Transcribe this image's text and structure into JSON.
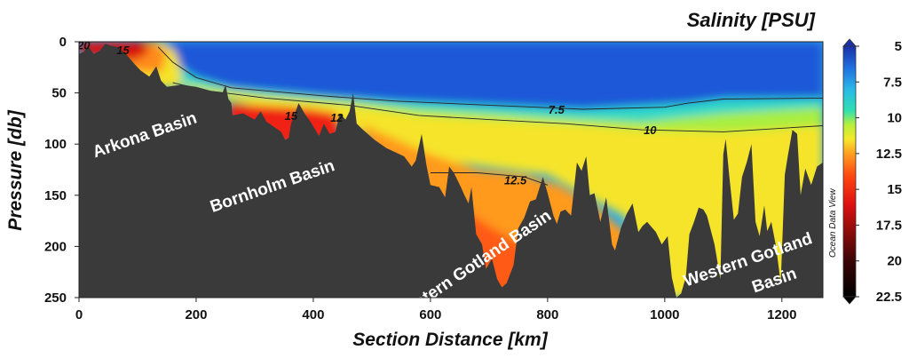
{
  "chart_data": {
    "type": "heatmap",
    "title": "Salinity [PSU]",
    "xlabel": "Section Distance [km]",
    "ylabel": "Pressure [db]",
    "xlim": [
      0,
      1270
    ],
    "ylim": [
      0,
      250
    ],
    "y_inverted": true,
    "x_ticks": [
      0,
      200,
      400,
      600,
      800,
      1000,
      1200
    ],
    "y_ticks": [
      0,
      50,
      100,
      150,
      200,
      250
    ],
    "colorbar": {
      "label_side": "right",
      "ticks": [
        "5",
        "7.5",
        "10",
        "12.5",
        "15",
        "17.5",
        "20",
        "22.5"
      ],
      "stops": [
        {
          "value": 5,
          "color": "#1a2fa8"
        },
        {
          "value": 6.5,
          "color": "#1f6fe0"
        },
        {
          "value": 8,
          "color": "#29b8e8"
        },
        {
          "value": 9.5,
          "color": "#2fe0b0"
        },
        {
          "value": 10.5,
          "color": "#b8f03a"
        },
        {
          "value": 11.5,
          "color": "#f5e82a"
        },
        {
          "value": 12.5,
          "color": "#ffa020"
        },
        {
          "value": 14,
          "color": "#ff4a10"
        },
        {
          "value": 16,
          "color": "#e01010"
        },
        {
          "value": 18,
          "color": "#8a0a0a"
        },
        {
          "value": 20,
          "color": "#3a0505"
        },
        {
          "value": 22.5,
          "color": "#000000"
        }
      ]
    },
    "watermark": "Ocean Data View",
    "contours": [
      {
        "label": "20",
        "at": [
          8,
          3
        ]
      },
      {
        "label": "15",
        "at": [
          75,
          8
        ]
      },
      {
        "label": "15",
        "at": [
          362,
          72
        ]
      },
      {
        "label": "12",
        "at": [
          440,
          74
        ]
      },
      {
        "label": "7.5",
        "at": [
          815,
          66
        ]
      },
      {
        "label": "10",
        "at": [
          975,
          86
        ]
      },
      {
        "label": "12.5",
        "at": [
          745,
          135
        ]
      }
    ],
    "contour_lines": [
      {
        "value": 7.5,
        "points": [
          [
            135,
            5
          ],
          [
            160,
            20
          ],
          [
            200,
            35
          ],
          [
            260,
            45
          ],
          [
            320,
            48
          ],
          [
            420,
            53
          ],
          [
            540,
            58
          ],
          [
            700,
            62
          ],
          [
            860,
            66
          ],
          [
            1000,
            64
          ],
          [
            1040,
            60
          ],
          [
            1100,
            56
          ],
          [
            1270,
            55
          ]
        ]
      },
      {
        "value": 10,
        "points": [
          [
            160,
            40
          ],
          [
            220,
            48
          ],
          [
            320,
            55
          ],
          [
            460,
            62
          ],
          [
            580,
            72
          ],
          [
            700,
            76
          ],
          [
            830,
            80
          ],
          [
            960,
            86
          ],
          [
            1100,
            88
          ],
          [
            1270,
            82
          ]
        ]
      },
      {
        "value": 12.5,
        "points": [
          [
            600,
            128
          ],
          [
            680,
            128
          ],
          [
            760,
            132
          ],
          [
            800,
            140
          ]
        ]
      }
    ],
    "basins": [
      {
        "label": "Arkona Basin",
        "at": [
          115,
          96
        ],
        "angle": -19
      },
      {
        "label": "Bornholm Basin",
        "at": [
          333,
          146
        ],
        "angle": -19
      },
      {
        "label": "Eastern Gotland Basin",
        "at": [
          680,
          222
        ],
        "angle": -34
      },
      {
        "label": "Western Gotland",
        "at": [
          1145,
          218
        ],
        "angle": -19
      },
      {
        "label": "Basin",
        "at": [
          1190,
          238
        ],
        "angle": -19
      }
    ],
    "bottom_depth": [
      [
        0,
        12
      ],
      [
        8,
        10
      ],
      [
        15,
        4
      ],
      [
        25,
        12
      ],
      [
        35,
        9
      ],
      [
        45,
        2
      ],
      [
        55,
        4
      ],
      [
        65,
        5
      ],
      [
        80,
        12
      ],
      [
        95,
        22
      ],
      [
        105,
        28
      ],
      [
        120,
        34
      ],
      [
        132,
        24
      ],
      [
        140,
        38
      ],
      [
        150,
        44
      ],
      [
        175,
        42
      ],
      [
        200,
        44
      ],
      [
        225,
        48
      ],
      [
        245,
        50
      ],
      [
        250,
        42
      ],
      [
        255,
        56
      ],
      [
        260,
        60
      ],
      [
        262,
        72
      ],
      [
        280,
        70
      ],
      [
        300,
        76
      ],
      [
        310,
        68
      ],
      [
        320,
        78
      ],
      [
        335,
        84
      ],
      [
        345,
        88
      ],
      [
        352,
        96
      ],
      [
        358,
        94
      ],
      [
        362,
        80
      ],
      [
        375,
        60
      ],
      [
        385,
        70
      ],
      [
        395,
        78
      ],
      [
        410,
        92
      ],
      [
        418,
        80
      ],
      [
        428,
        90
      ],
      [
        438,
        88
      ],
      [
        445,
        70
      ],
      [
        455,
        76
      ],
      [
        462,
        68
      ],
      [
        468,
        50
      ],
      [
        474,
        80
      ],
      [
        485,
        86
      ],
      [
        505,
        96
      ],
      [
        525,
        104
      ],
      [
        540,
        108
      ],
      [
        555,
        112
      ],
      [
        568,
        122
      ],
      [
        575,
        116
      ],
      [
        585,
        90
      ],
      [
        593,
        120
      ],
      [
        600,
        140
      ],
      [
        615,
        142
      ],
      [
        625,
        152
      ],
      [
        632,
        122
      ],
      [
        640,
        128
      ],
      [
        652,
        142
      ],
      [
        658,
        150
      ],
      [
        665,
        158
      ],
      [
        670,
        142
      ],
      [
        678,
        188
      ],
      [
        688,
        198
      ],
      [
        695,
        222
      ],
      [
        705,
        212
      ],
      [
        714,
        232
      ],
      [
        722,
        240
      ],
      [
        730,
        236
      ],
      [
        742,
        218
      ],
      [
        750,
        182
      ],
      [
        760,
        172
      ],
      [
        770,
        156
      ],
      [
        780,
        154
      ],
      [
        792,
        132
      ],
      [
        800,
        148
      ],
      [
        810,
        170
      ],
      [
        816,
        178
      ],
      [
        822,
        166
      ],
      [
        830,
        164
      ],
      [
        840,
        170
      ],
      [
        850,
        118
      ],
      [
        858,
        126
      ],
      [
        866,
        112
      ],
      [
        872,
        150
      ],
      [
        880,
        148
      ],
      [
        890,
        176
      ],
      [
        900,
        152
      ],
      [
        910,
        198
      ],
      [
        915,
        204
      ],
      [
        925,
        182
      ],
      [
        935,
        168
      ],
      [
        945,
        158
      ],
      [
        955,
        186
      ],
      [
        962,
        180
      ],
      [
        970,
        176
      ],
      [
        985,
        186
      ],
      [
        995,
        198
      ],
      [
        1005,
        190
      ],
      [
        1012,
        230
      ],
      [
        1020,
        250
      ],
      [
        1028,
        246
      ],
      [
        1036,
        230
      ],
      [
        1042,
        188
      ],
      [
        1050,
        176
      ],
      [
        1058,
        162
      ],
      [
        1066,
        164
      ],
      [
        1072,
        170
      ],
      [
        1085,
        198
      ],
      [
        1095,
        232
      ],
      [
        1100,
        110
      ],
      [
        1104,
        95
      ],
      [
        1110,
        130
      ],
      [
        1118,
        174
      ],
      [
        1125,
        168
      ],
      [
        1132,
        132
      ],
      [
        1140,
        118
      ],
      [
        1148,
        100
      ],
      [
        1155,
        176
      ],
      [
        1162,
        190
      ],
      [
        1170,
        160
      ],
      [
        1175,
        185
      ],
      [
        1182,
        176
      ],
      [
        1190,
        200
      ],
      [
        1198,
        236
      ],
      [
        1205,
        130
      ],
      [
        1210,
        112
      ],
      [
        1218,
        86
      ],
      [
        1226,
        90
      ],
      [
        1232,
        150
      ],
      [
        1240,
        124
      ],
      [
        1250,
        140
      ],
      [
        1260,
        122
      ],
      [
        1270,
        118
      ]
    ],
    "water_fields": [
      {
        "name": "blue-surface",
        "color": "#1f58d8",
        "points": [
          [
            130,
            0
          ],
          [
            1270,
            0
          ],
          [
            1270,
            55
          ],
          [
            1100,
            55
          ],
          [
            1040,
            60
          ],
          [
            860,
            66
          ],
          [
            700,
            62
          ],
          [
            540,
            58
          ],
          [
            420,
            53
          ],
          [
            320,
            48
          ],
          [
            260,
            45
          ],
          [
            200,
            35
          ],
          [
            160,
            20
          ]
        ]
      },
      {
        "name": "halocline-cyan",
        "color": "#2fd8c8",
        "points": [
          [
            160,
            20
          ],
          [
            200,
            35
          ],
          [
            260,
            45
          ],
          [
            320,
            48
          ],
          [
            420,
            53
          ],
          [
            540,
            58
          ],
          [
            700,
            62
          ],
          [
            860,
            66
          ],
          [
            1040,
            60
          ],
          [
            1100,
            56
          ],
          [
            1270,
            55
          ],
          [
            1270,
            64
          ],
          [
            1100,
            70
          ],
          [
            960,
            78
          ],
          [
            830,
            75
          ],
          [
            700,
            70
          ],
          [
            580,
            66
          ],
          [
            460,
            58
          ],
          [
            320,
            52
          ],
          [
            220,
            44
          ],
          [
            160,
            38
          ]
        ]
      },
      {
        "name": "halocline-green",
        "color": "#a8ee40",
        "points": [
          [
            160,
            38
          ],
          [
            220,
            44
          ],
          [
            320,
            52
          ],
          [
            460,
            58
          ],
          [
            580,
            66
          ],
          [
            700,
            70
          ],
          [
            830,
            75
          ],
          [
            960,
            78
          ],
          [
            1100,
            70
          ],
          [
            1270,
            64
          ],
          [
            1270,
            82
          ],
          [
            1100,
            88
          ],
          [
            960,
            86
          ],
          [
            830,
            80
          ],
          [
            700,
            76
          ],
          [
            580,
            72
          ],
          [
            460,
            62
          ],
          [
            320,
            55
          ],
          [
            220,
            48
          ],
          [
            160,
            40
          ]
        ]
      },
      {
        "name": "deep-yellow",
        "color": "#f5e42a",
        "points": [
          [
            160,
            40
          ],
          [
            220,
            48
          ],
          [
            320,
            55
          ],
          [
            460,
            62
          ],
          [
            580,
            72
          ],
          [
            700,
            76
          ],
          [
            830,
            80
          ],
          [
            960,
            86
          ],
          [
            1100,
            88
          ],
          [
            1270,
            82
          ],
          [
            1270,
            250
          ],
          [
            1000,
            250
          ],
          [
            930,
            170
          ],
          [
            800,
            130
          ],
          [
            640,
            118
          ],
          [
            520,
            104
          ],
          [
            420,
            70
          ],
          [
            300,
            62
          ],
          [
            200,
            50
          ]
        ]
      },
      {
        "name": "deep-orange",
        "color": "#ff9a1e",
        "points": [
          [
            480,
            80
          ],
          [
            600,
            110
          ],
          [
            680,
            125
          ],
          [
            760,
            130
          ],
          [
            820,
            140
          ],
          [
            880,
            160
          ],
          [
            940,
            190
          ],
          [
            960,
            250
          ],
          [
            560,
            250
          ],
          [
            540,
            150
          ]
        ]
      },
      {
        "name": "deep-red-orange",
        "color": "#ff5a12",
        "points": [
          [
            620,
            150
          ],
          [
            700,
            180
          ],
          [
            760,
            200
          ],
          [
            790,
            230
          ],
          [
            790,
            250
          ],
          [
            620,
            250
          ]
        ]
      },
      {
        "name": "bornholm-red",
        "color": "#f02414",
        "points": [
          [
            255,
            60
          ],
          [
            300,
            62
          ],
          [
            360,
            64
          ],
          [
            400,
            66
          ],
          [
            440,
            70
          ],
          [
            450,
            100
          ],
          [
            255,
            100
          ]
        ]
      },
      {
        "name": "arkona-yellow",
        "color": "#f4e32a",
        "points": [
          [
            60,
            0
          ],
          [
            140,
            0
          ],
          [
            165,
            10
          ],
          [
            175,
            30
          ],
          [
            170,
            45
          ],
          [
            120,
            45
          ],
          [
            60,
            30
          ]
        ]
      },
      {
        "name": "arkona-orange",
        "color": "#ff8a1a",
        "points": [
          [
            40,
            0
          ],
          [
            130,
            0
          ],
          [
            150,
            12
          ],
          [
            140,
            30
          ],
          [
            80,
            28
          ],
          [
            40,
            18
          ]
        ]
      },
      {
        "name": "arkona-red",
        "color": "#d81010",
        "points": [
          [
            0,
            0
          ],
          [
            110,
            0
          ],
          [
            120,
            10
          ],
          [
            95,
            18
          ],
          [
            40,
            15
          ],
          [
            0,
            12
          ]
        ]
      }
    ]
  }
}
